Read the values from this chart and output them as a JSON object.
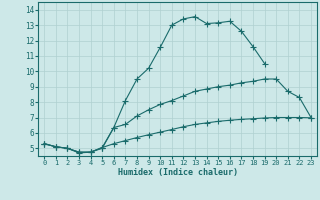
{
  "bg_color": "#cde8e8",
  "line_color": "#1a6b6b",
  "grid_color": "#b0d0d0",
  "xlabel": "Humidex (Indice chaleur)",
  "ylim": [
    4.5,
    14.5
  ],
  "xlim": [
    -0.5,
    23.5
  ],
  "yticks": [
    5,
    6,
    7,
    8,
    9,
    10,
    11,
    12,
    13,
    14
  ],
  "xticks": [
    0,
    1,
    2,
    3,
    4,
    5,
    6,
    7,
    8,
    9,
    10,
    11,
    12,
    13,
    14,
    15,
    16,
    17,
    18,
    19,
    20,
    21,
    22,
    23
  ],
  "curve1_x": [
    0,
    1,
    2,
    3,
    4,
    5,
    6,
    7,
    8,
    9,
    10,
    11,
    12,
    13,
    14,
    15,
    16,
    17,
    18,
    19
  ],
  "curve1_y": [
    5.3,
    5.1,
    5.0,
    4.7,
    4.75,
    5.0,
    6.35,
    8.1,
    9.5,
    10.2,
    11.55,
    13.0,
    13.4,
    13.55,
    13.1,
    13.15,
    13.25,
    12.6,
    11.6,
    10.5
  ],
  "curve2_x": [
    0,
    1,
    2,
    3,
    4,
    5,
    6,
    7,
    8,
    9,
    10,
    11,
    12,
    13,
    14,
    15,
    16,
    17,
    18,
    19,
    20,
    21,
    22,
    23
  ],
  "curve2_y": [
    5.3,
    5.1,
    5.0,
    4.75,
    4.75,
    5.05,
    6.35,
    6.55,
    7.1,
    7.5,
    7.85,
    8.1,
    8.4,
    8.7,
    8.85,
    9.0,
    9.1,
    9.25,
    9.35,
    9.5,
    9.5,
    8.7,
    8.3,
    7.0
  ],
  "curve3_x": [
    0,
    1,
    2,
    3,
    4,
    5,
    6,
    7,
    8,
    9,
    10,
    11,
    12,
    13,
    14,
    15,
    16,
    17,
    18,
    19,
    20,
    21,
    22,
    23
  ],
  "curve3_y": [
    5.3,
    5.1,
    5.0,
    4.75,
    4.75,
    5.05,
    5.3,
    5.5,
    5.7,
    5.88,
    6.05,
    6.22,
    6.4,
    6.55,
    6.65,
    6.75,
    6.82,
    6.88,
    6.92,
    6.97,
    7.0,
    7.0,
    7.0,
    6.98
  ]
}
